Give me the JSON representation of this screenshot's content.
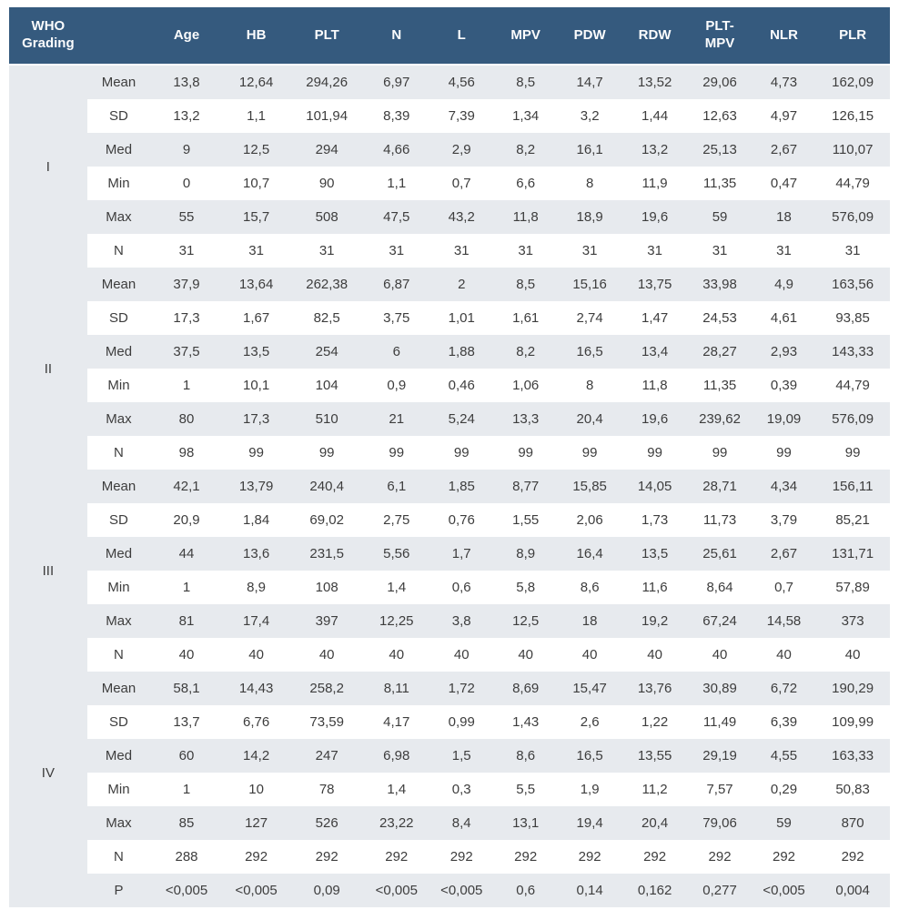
{
  "colors": {
    "header_bg": "#355a7e",
    "header_text": "#fbfcfd",
    "stripe_bg": "#e7eaee",
    "body_text": "#3d3d3d"
  },
  "table": {
    "header": {
      "group_col": "WHO Grading",
      "stat_col": "",
      "columns": [
        "Age",
        "HB",
        "PLT",
        "N",
        "L",
        "MPV",
        "PDW",
        "RDW",
        "PLT-MPV",
        "NLR",
        "PLR"
      ]
    },
    "groups": [
      {
        "label": "I",
        "rows": [
          {
            "stat": "Mean",
            "values": [
              "13,8",
              "12,64",
              "294,26",
              "6,97",
              "4,56",
              "8,5",
              "14,7",
              "13,52",
              "29,06",
              "4,73",
              "162,09"
            ]
          },
          {
            "stat": "SD",
            "values": [
              "13,2",
              "1,1",
              "101,94",
              "8,39",
              "7,39",
              "1,34",
              "3,2",
              "1,44",
              "12,63",
              "4,97",
              "126,15"
            ]
          },
          {
            "stat": "Med",
            "values": [
              "9",
              "12,5",
              "294",
              "4,66",
              "2,9",
              "8,2",
              "16,1",
              "13,2",
              "25,13",
              "2,67",
              "110,07"
            ]
          },
          {
            "stat": "Min",
            "values": [
              "0",
              "10,7",
              "90",
              "1,1",
              "0,7",
              "6,6",
              "8",
              "11,9",
              "11,35",
              "0,47",
              "44,79"
            ]
          },
          {
            "stat": "Max",
            "values": [
              "55",
              "15,7",
              "508",
              "47,5",
              "43,2",
              "11,8",
              "18,9",
              "19,6",
              "59",
              "18",
              "576,09"
            ]
          },
          {
            "stat": "N",
            "values": [
              "31",
              "31",
              "31",
              "31",
              "31",
              "31",
              "31",
              "31",
              "31",
              "31",
              "31"
            ]
          }
        ]
      },
      {
        "label": "II",
        "rows": [
          {
            "stat": "Mean",
            "values": [
              "37,9",
              "13,64",
              "262,38",
              "6,87",
              "2",
              "8,5",
              "15,16",
              "13,75",
              "33,98",
              "4,9",
              "163,56"
            ]
          },
          {
            "stat": "SD",
            "values": [
              "17,3",
              "1,67",
              "82,5",
              "3,75",
              "1,01",
              "1,61",
              "2,74",
              "1,47",
              "24,53",
              "4,61",
              "93,85"
            ]
          },
          {
            "stat": "Med",
            "values": [
              "37,5",
              "13,5",
              "254",
              "6",
              "1,88",
              "8,2",
              "16,5",
              "13,4",
              "28,27",
              "2,93",
              "143,33"
            ]
          },
          {
            "stat": "Min",
            "values": [
              "1",
              "10,1",
              "104",
              "0,9",
              "0,46",
              "1,06",
              "8",
              "11,8",
              "11,35",
              "0,39",
              "44,79"
            ]
          },
          {
            "stat": "Max",
            "values": [
              "80",
              "17,3",
              "510",
              "21",
              "5,24",
              "13,3",
              "20,4",
              "19,6",
              "239,62",
              "19,09",
              "576,09"
            ]
          },
          {
            "stat": "N",
            "values": [
              "98",
              "99",
              "99",
              "99",
              "99",
              "99",
              "99",
              "99",
              "99",
              "99",
              "99"
            ]
          }
        ]
      },
      {
        "label": "III",
        "rows": [
          {
            "stat": "Mean",
            "values": [
              "42,1",
              "13,79",
              "240,4",
              "6,1",
              "1,85",
              "8,77",
              "15,85",
              "14,05",
              "28,71",
              "4,34",
              "156,11"
            ]
          },
          {
            "stat": "SD",
            "values": [
              "20,9",
              "1,84",
              "69,02",
              "2,75",
              "0,76",
              "1,55",
              "2,06",
              "1,73",
              "11,73",
              "3,79",
              "85,21"
            ]
          },
          {
            "stat": "Med",
            "values": [
              "44",
              "13,6",
              "231,5",
              "5,56",
              "1,7",
              "8,9",
              "16,4",
              "13,5",
              "25,61",
              "2,67",
              "131,71"
            ]
          },
          {
            "stat": "Min",
            "values": [
              "1",
              "8,9",
              "108",
              "1,4",
              "0,6",
              "5,8",
              "8,6",
              "11,6",
              "8,64",
              "0,7",
              "57,89"
            ]
          },
          {
            "stat": "Max",
            "values": [
              "81",
              "17,4",
              "397",
              "12,25",
              "3,8",
              "12,5",
              "18",
              "19,2",
              "67,24",
              "14,58",
              "373"
            ]
          },
          {
            "stat": "N",
            "values": [
              "40",
              "40",
              "40",
              "40",
              "40",
              "40",
              "40",
              "40",
              "40",
              "40",
              "40"
            ]
          }
        ]
      },
      {
        "label": "IV",
        "rows": [
          {
            "stat": "Mean",
            "values": [
              "58,1",
              "14,43",
              "258,2",
              "8,11",
              "1,72",
              "8,69",
              "15,47",
              "13,76",
              "30,89",
              "6,72",
              "190,29"
            ]
          },
          {
            "stat": "SD",
            "values": [
              "13,7",
              "6,76",
              "73,59",
              "4,17",
              "0,99",
              "1,43",
              "2,6",
              "1,22",
              "11,49",
              "6,39",
              "109,99"
            ]
          },
          {
            "stat": "Med",
            "values": [
              "60",
              "14,2",
              "247",
              "6,98",
              "1,5",
              "8,6",
              "16,5",
              "13,55",
              "29,19",
              "4,55",
              "163,33"
            ]
          },
          {
            "stat": "Min",
            "values": [
              "1",
              "10",
              "78",
              "1,4",
              "0,3",
              "5,5",
              "1,9",
              "11,2",
              "7,57",
              "0,29",
              "50,83"
            ]
          },
          {
            "stat": "Max",
            "values": [
              "85",
              "127",
              "526",
              "23,22",
              "8,4",
              "13,1",
              "19,4",
              "20,4",
              "79,06",
              "59",
              "870"
            ]
          },
          {
            "stat": "N",
            "values": [
              "288",
              "292",
              "292",
              "292",
              "292",
              "292",
              "292",
              "292",
              "292",
              "292",
              "292"
            ]
          }
        ]
      }
    ],
    "p_row": {
      "stat": "P",
      "values": [
        "<0,005",
        "<0,005",
        "0,09",
        "<0,005",
        "<0,005",
        "0,6",
        "0,14",
        "0,162",
        "0,277",
        "<0,005",
        "0,004"
      ]
    }
  }
}
